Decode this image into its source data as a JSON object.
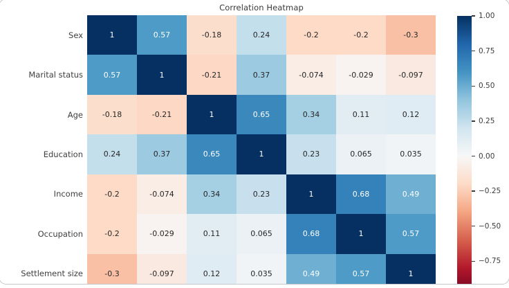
{
  "title": "Correlation Heatmap",
  "heatmap": {
    "row_labels": [
      "Sex",
      "Marital status",
      "Age",
      "Education",
      "Income",
      "Occupation",
      "Settlement size"
    ],
    "cell_values": [
      [
        "1",
        "0.57",
        "-0.18",
        "0.24",
        "-0.2",
        "-0.2",
        "-0.3"
      ],
      [
        "0.57",
        "1",
        "-0.21",
        "0.37",
        "-0.074",
        "-0.029",
        "-0.097"
      ],
      [
        "-0.18",
        "-0.21",
        "1",
        "0.65",
        "0.34",
        "0.11",
        "0.12"
      ],
      [
        "0.24",
        "0.37",
        "0.65",
        "1",
        "0.23",
        "0.065",
        "0.035"
      ],
      [
        "-0.2",
        "-0.074",
        "0.34",
        "0.23",
        "1",
        "0.68",
        "0.49"
      ],
      [
        "-0.2",
        "-0.029",
        "0.11",
        "0.065",
        "0.68",
        "1",
        "0.57"
      ],
      [
        "-0.3",
        "-0.097",
        "0.12",
        "0.035",
        "0.49",
        "0.57",
        "1"
      ]
    ]
  },
  "colorbar": {
    "tick_labels": [
      "1.00",
      "0.75",
      "0.50",
      "0.25",
      "0.00",
      "−0.25",
      "−0.50",
      "−0.75"
    ],
    "tick_values": [
      1,
      0.75,
      0.5,
      0.25,
      0,
      -0.25,
      -0.5,
      -0.75
    ],
    "vmin": -1,
    "vmax": 1,
    "colormap_name": "RdBu",
    "colormap_stops": [
      "#67001f",
      "#b2182b",
      "#d6604d",
      "#f4a582",
      "#fddbc7",
      "#f7f7f7",
      "#d1e5f0",
      "#92c5de",
      "#4393c3",
      "#2166ac",
      "#053061"
    ]
  },
  "chart_data": {
    "type": "heatmap",
    "title": "Correlation Heatmap",
    "rows": [
      "Sex",
      "Marital status",
      "Age",
      "Education",
      "Income",
      "Occupation",
      "Settlement size"
    ],
    "columns": [
      "Sex",
      "Marital status",
      "Age",
      "Education",
      "Income",
      "Occupation",
      "Settlement size"
    ],
    "values": [
      [
        1,
        0.57,
        -0.18,
        0.24,
        -0.2,
        -0.2,
        -0.3
      ],
      [
        0.57,
        1,
        -0.21,
        0.37,
        -0.074,
        -0.029,
        -0.097
      ],
      [
        -0.18,
        -0.21,
        1,
        0.65,
        0.34,
        0.11,
        0.12
      ],
      [
        0.24,
        0.37,
        0.65,
        1,
        0.23,
        0.065,
        0.035
      ],
      [
        -0.2,
        -0.074,
        0.34,
        0.23,
        1,
        0.68,
        0.49
      ],
      [
        -0.2,
        -0.029,
        0.11,
        0.065,
        0.68,
        1,
        0.57
      ],
      [
        -0.3,
        -0.097,
        0.12,
        0.035,
        0.49,
        0.57,
        1
      ]
    ],
    "colormap": "RdBu",
    "vmin": -1,
    "vmax": 1,
    "colorbar_ticks": [
      1.0,
      0.75,
      0.5,
      0.25,
      0.0,
      -0.25,
      -0.5,
      -0.75
    ],
    "legend_position": "right-colorbar",
    "annotations_shown": true,
    "x_tick_labels_visible": false
  }
}
